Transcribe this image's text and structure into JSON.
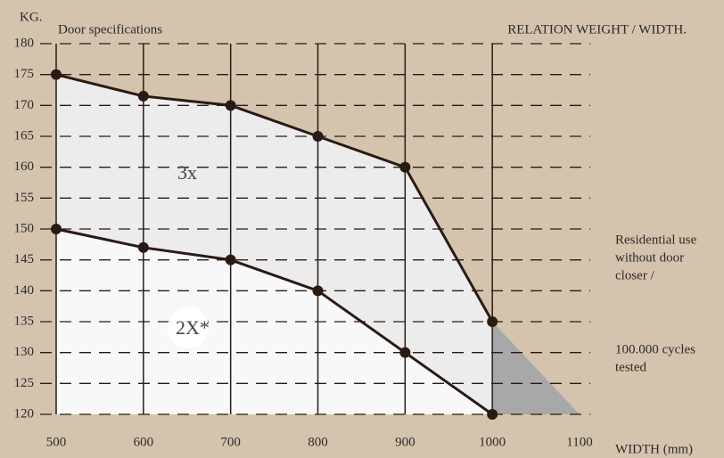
{
  "chart_data": {
    "type": "line",
    "title": "Door specifications",
    "subtitle": "RELATION WEIGHT / WIDTH.",
    "y_label": "KG.",
    "x_label": "WIDTH (mm)",
    "x": [
      500,
      600,
      700,
      800,
      900,
      1000
    ],
    "series": [
      {
        "name": "3x",
        "color": "#2a1a14",
        "fill": "#ececec",
        "values": [
          175,
          171.5,
          170,
          165,
          160,
          135
        ]
      },
      {
        "name": "2X*",
        "color": "#2a1a14",
        "fill": "#f8f8f8",
        "values": [
          150,
          147,
          145,
          140,
          130,
          120
        ]
      }
    ],
    "shaded_region": {
      "x": [
        1000,
        1000,
        1100
      ],
      "y": [
        135,
        120,
        120
      ],
      "color": "#a8a8a8"
    },
    "xlim": [
      500,
      1100
    ],
    "xticks": [
      500,
      600,
      700,
      800,
      900,
      1000,
      1100
    ],
    "ylim": [
      120,
      180
    ],
    "yticks": [
      120,
      125,
      130,
      135,
      140,
      145,
      150,
      155,
      160,
      165,
      170,
      175,
      180
    ],
    "grid": true,
    "annotations": [
      [
        "Residential use",
        "without door",
        "closer /"
      ],
      [
        "100.000 cycles",
        "tested"
      ]
    ]
  }
}
